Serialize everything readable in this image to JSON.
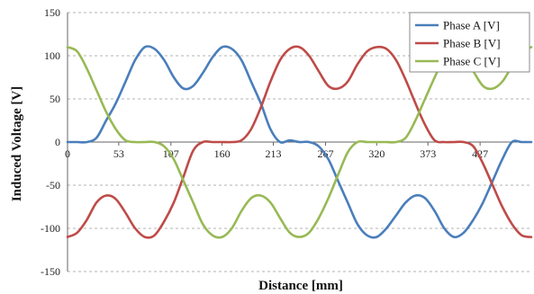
{
  "chart_data": {
    "type": "line",
    "xlabel": "Distance [mm]",
    "ylabel": "Induced Voltage [V]",
    "xlim": [
      0,
      480
    ],
    "ylim": [
      -150,
      150
    ],
    "y_ticks": [
      "150",
      "100",
      "50",
      "0",
      "-50",
      "-100",
      "-150"
    ],
    "x_ticks": [
      {
        "value": 0,
        "label": "0"
      },
      {
        "value": 53,
        "label": "53"
      },
      {
        "value": 107,
        "label": "107"
      },
      {
        "value": 160,
        "label": "160"
      },
      {
        "value": 213,
        "label": "213"
      },
      {
        "value": 267,
        "label": "267"
      },
      {
        "value": 320,
        "label": "320"
      },
      {
        "value": 373,
        "label": "373"
      },
      {
        "value": 427,
        "label": "427"
      }
    ],
    "grid": true,
    "legend_position": "top-right",
    "series": [
      {
        "name": "Phase A [V]",
        "color": "#4a7ebb",
        "x": [
          0,
          10,
          20,
          30,
          40,
          50,
          60,
          70,
          80,
          90,
          100,
          110,
          120,
          130,
          140,
          150,
          160,
          170,
          180,
          190,
          200,
          210,
          220,
          230,
          240,
          250,
          260,
          270,
          280,
          290,
          300,
          310,
          320,
          330,
          340,
          350,
          360,
          370,
          380,
          390,
          400,
          410,
          420,
          430,
          440,
          450,
          460,
          470,
          480
        ],
        "y": [
          0,
          0,
          0,
          5,
          25,
          45,
          70,
          95,
          110,
          108,
          95,
          75,
          62,
          65,
          80,
          98,
          110,
          108,
          95,
          70,
          45,
          15,
          0,
          2,
          0,
          0,
          -5,
          -20,
          -45,
          -70,
          -95,
          -108,
          -110,
          -100,
          -85,
          -70,
          -62,
          -65,
          -80,
          -100,
          -110,
          -105,
          -90,
          -70,
          -45,
          -20,
          0,
          0,
          0
        ]
      },
      {
        "name": "Phase B [V]",
        "color": "#be4b48",
        "x": [
          0,
          10,
          20,
          30,
          40,
          50,
          60,
          70,
          80,
          90,
          100,
          110,
          120,
          130,
          140,
          150,
          160,
          170,
          180,
          190,
          200,
          210,
          220,
          230,
          240,
          250,
          260,
          270,
          280,
          290,
          300,
          310,
          320,
          330,
          340,
          350,
          360,
          370,
          380,
          390,
          400,
          410,
          420,
          430,
          440,
          450,
          460,
          470,
          480
        ],
        "y": [
          -110,
          -105,
          -90,
          -70,
          -62,
          -66,
          -82,
          -100,
          -110,
          -108,
          -92,
          -70,
          -40,
          -10,
          0,
          0,
          0,
          0,
          2,
          15,
          40,
          70,
          95,
          108,
          110,
          100,
          82,
          65,
          62,
          70,
          90,
          105,
          110,
          108,
          95,
          72,
          45,
          20,
          2,
          0,
          0,
          0,
          -5,
          -25,
          -50,
          -75,
          -95,
          -108,
          -110
        ]
      },
      {
        "name": "Phase C [V]",
        "color": "#98b954",
        "x": [
          0,
          10,
          20,
          30,
          40,
          50,
          60,
          70,
          80,
          90,
          100,
          110,
          120,
          130,
          140,
          150,
          160,
          170,
          180,
          190,
          200,
          210,
          220,
          230,
          240,
          250,
          260,
          270,
          280,
          290,
          300,
          310,
          320,
          330,
          340,
          350,
          360,
          370,
          380,
          390,
          400,
          410,
          420,
          430,
          440,
          450,
          460,
          470,
          480
        ],
        "y": [
          110,
          105,
          85,
          60,
          35,
          15,
          2,
          0,
          0,
          0,
          -5,
          -20,
          -45,
          -70,
          -95,
          -108,
          -110,
          -100,
          -80,
          -65,
          -62,
          -70,
          -88,
          -105,
          -110,
          -105,
          -88,
          -65,
          -38,
          -12,
          0,
          0,
          0,
          0,
          0,
          5,
          25,
          50,
          75,
          98,
          110,
          100,
          82,
          65,
          62,
          70,
          88,
          105,
          110
        ]
      }
    ]
  }
}
